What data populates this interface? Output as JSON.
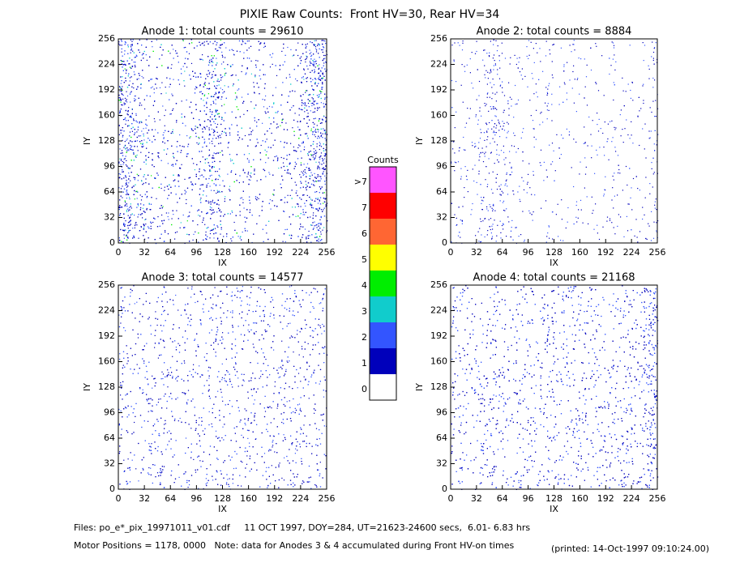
{
  "title": "PIXIE Raw Counts:  Front HV=30, Rear HV=34",
  "chart_data": [
    {
      "type": "heatmap",
      "title": "Anode 1: total counts = 29610",
      "xlabel": "IX",
      "ylabel": "IY",
      "xlim": [
        0,
        256
      ],
      "ylim": [
        0,
        256
      ],
      "xticks": [
        0,
        32,
        64,
        96,
        128,
        160,
        192,
        224,
        256
      ],
      "yticks": [
        0,
        32,
        64,
        96,
        128,
        160,
        192,
        224,
        256
      ]
    },
    {
      "type": "heatmap",
      "title": "Anode 2: total counts = 8884",
      "xlabel": "IX",
      "ylabel": "IY",
      "xlim": [
        0,
        256
      ],
      "ylim": [
        0,
        256
      ],
      "xticks": [
        0,
        32,
        64,
        96,
        128,
        160,
        192,
        224,
        256
      ],
      "yticks": [
        0,
        32,
        64,
        96,
        128,
        160,
        192,
        224,
        256
      ]
    },
    {
      "type": "heatmap",
      "title": "Anode 3: total counts = 14577",
      "xlabel": "IX",
      "ylabel": "IY",
      "xlim": [
        0,
        256
      ],
      "ylim": [
        0,
        256
      ],
      "xticks": [
        0,
        32,
        64,
        96,
        128,
        160,
        192,
        224,
        256
      ],
      "yticks": [
        0,
        32,
        64,
        96,
        128,
        160,
        192,
        224,
        256
      ]
    },
    {
      "type": "heatmap",
      "title": "Anode 4: total counts = 21168",
      "xlabel": "IX",
      "ylabel": "IY",
      "xlim": [
        0,
        256
      ],
      "ylim": [
        0,
        256
      ],
      "xticks": [
        0,
        32,
        64,
        96,
        128,
        160,
        192,
        224,
        256
      ],
      "yticks": [
        0,
        32,
        64,
        96,
        128,
        160,
        192,
        224,
        256
      ]
    }
  ],
  "colorbar": {
    "title": "Counts",
    "labels": [
      ">7",
      "7",
      "6",
      "5",
      "4",
      "3",
      "2",
      "1",
      "0"
    ],
    "colors": [
      "#ff55ff",
      "#ff0000",
      "#ff6633",
      "#ffff00",
      "#00ee00",
      "#11cccc",
      "#3355ff",
      "#0000bb",
      "#ffffff"
    ]
  },
  "footer": {
    "files": "Files: po_e*_pix_19971011_v01.cdf     11 OCT 1997, DOY=284, UT=21623-24600 secs,  6.01- 6.83 hrs",
    "motor": "Motor Positions = 1178, 0000   Note: data for Anodes 3 & 4 accumulated during Front HV-on times",
    "printed": "(printed: 14-Oct-1997 09:10:24.00)"
  }
}
